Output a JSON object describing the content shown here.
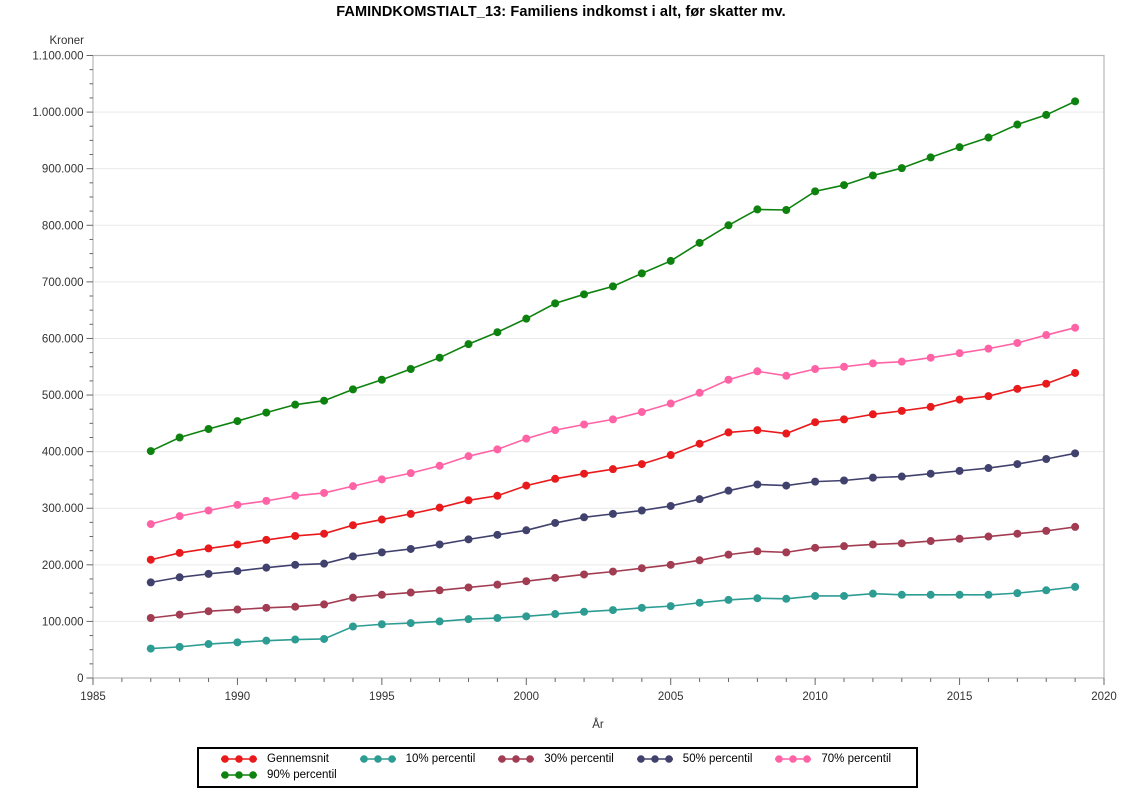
{
  "title": "FAMINDKOMSTIALT_13: Familiens indkomst i alt, før skatter mv.",
  "chart_data": {
    "type": "line",
    "title": "FAMINDKOMSTIALT_13: Familiens indkomst i alt, før skatter mv.",
    "xlabel": "År",
    "ylabel": "Kroner",
    "xlim": [
      1985,
      2020
    ],
    "ylim": [
      0,
      1100000
    ],
    "grid": "horizontal-only",
    "legend_position": "bottom",
    "x_tick_labels": [
      "1985",
      "1990",
      "1995",
      "2000",
      "2005",
      "2010",
      "2015",
      "2020"
    ],
    "x_major_tick_interval": 5,
    "x_minor_tick_interval": 1,
    "y_tick_labels": [
      "0",
      "100.000",
      "200.000",
      "300.000",
      "400.000",
      "500.000",
      "600.000",
      "700.000",
      "800.000",
      "900.000",
      "1.000.000",
      "1.100.000"
    ],
    "y_major_tick_interval": 100000,
    "y_minor_tick_interval": 25000,
    "x": [
      1987,
      1988,
      1989,
      1990,
      1991,
      1992,
      1993,
      1994,
      1995,
      1996,
      1997,
      1998,
      1999,
      2000,
      2001,
      2002,
      2003,
      2004,
      2005,
      2006,
      2007,
      2008,
      2009,
      2010,
      2011,
      2012,
      2013,
      2014,
      2015,
      2016,
      2017,
      2018,
      2019
    ],
    "series": [
      {
        "name": "Gennemsnit",
        "color": "#e81a1c",
        "values": [
          209000,
          221000,
          229000,
          236000,
          244000,
          251000,
          255000,
          270000,
          280000,
          290000,
          301000,
          314000,
          322000,
          340000,
          352000,
          361000,
          369000,
          378000,
          394000,
          414000,
          434000,
          438000,
          432000,
          452000,
          457000,
          466000,
          472000,
          479000,
          492000,
          498000,
          511000,
          520000,
          539000
        ]
      },
      {
        "name": "10% percentil",
        "color": "#2d9c93",
        "values": [
          52000,
          55000,
          60000,
          63000,
          66000,
          68000,
          69000,
          91000,
          95000,
          97000,
          100000,
          104000,
          106000,
          109000,
          113000,
          117000,
          120000,
          124000,
          127000,
          133000,
          138000,
          141000,
          140000,
          145000,
          145000,
          149000,
          147000,
          147000,
          147000,
          147000,
          150000,
          155000,
          161000
        ]
      },
      {
        "name": "30% percentil",
        "color": "#a23c52",
        "values": [
          106000,
          112000,
          118000,
          121000,
          124000,
          126000,
          130000,
          142000,
          147000,
          151000,
          155000,
          160000,
          165000,
          171000,
          177000,
          183000,
          188000,
          194000,
          200000,
          208000,
          218000,
          224000,
          222000,
          230000,
          233000,
          236000,
          238000,
          242000,
          246000,
          250000,
          255000,
          260000,
          267000
        ]
      },
      {
        "name": "50% percentil",
        "color": "#41416e",
        "values": [
          169000,
          178000,
          184000,
          189000,
          195000,
          200000,
          202000,
          215000,
          222000,
          228000,
          236000,
          245000,
          253000,
          261000,
          274000,
          284000,
          290000,
          296000,
          304000,
          316000,
          331000,
          342000,
          340000,
          347000,
          349000,
          354000,
          356000,
          361000,
          366000,
          371000,
          378000,
          387000,
          397000
        ]
      },
      {
        "name": "70% percentil",
        "color": "#ff63a5",
        "values": [
          272000,
          286000,
          296000,
          306000,
          313000,
          322000,
          327000,
          339000,
          351000,
          362000,
          375000,
          392000,
          404000,
          423000,
          438000,
          448000,
          457000,
          470000,
          485000,
          504000,
          527000,
          542000,
          534000,
          546000,
          550000,
          556000,
          559000,
          566000,
          574000,
          582000,
          592000,
          606000,
          619000
        ]
      },
      {
        "name": "90% percentil",
        "color": "#0e820e",
        "values": [
          401000,
          425000,
          440000,
          454000,
          469000,
          483000,
          490000,
          510000,
          527000,
          546000,
          566000,
          590000,
          611000,
          635000,
          662000,
          678000,
          692000,
          715000,
          737000,
          769000,
          800000,
          828000,
          827000,
          860000,
          871000,
          888000,
          901000,
          920000,
          938000,
          955000,
          978000,
          995000,
          1019000
        ]
      }
    ]
  },
  "colors": {
    "frame": "#b8b8b8",
    "gridline": "#e9e9e9",
    "tick": "#666666",
    "text": "#333333"
  }
}
